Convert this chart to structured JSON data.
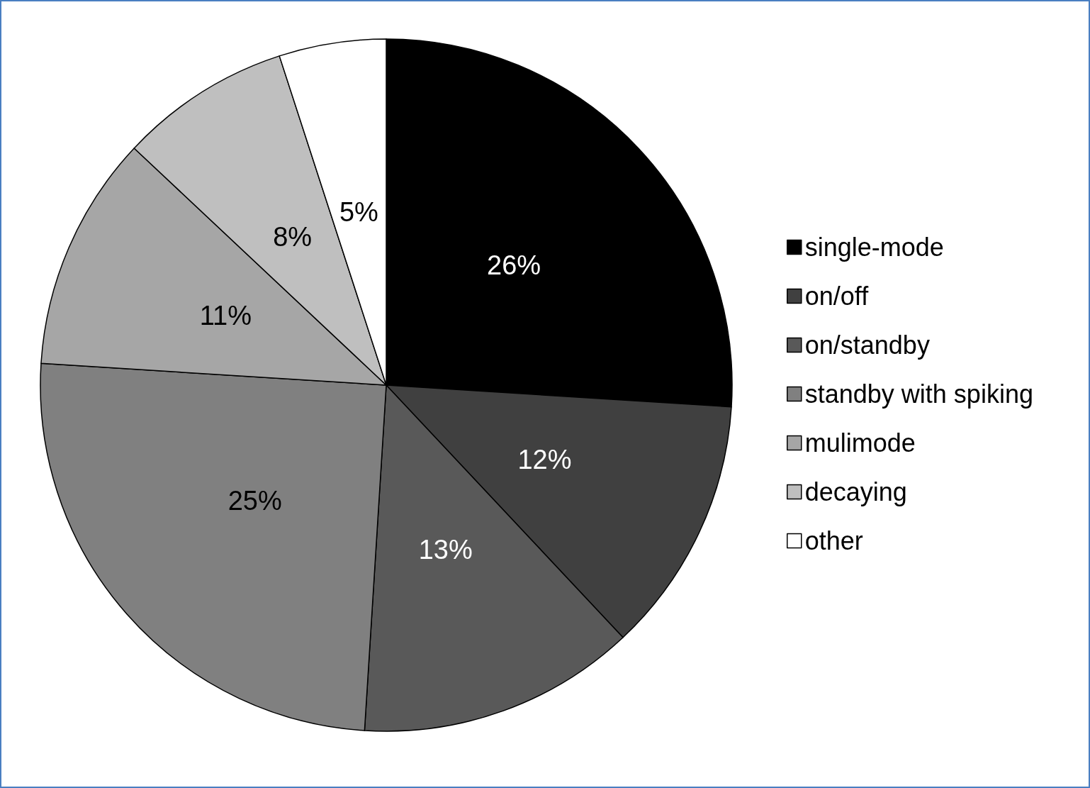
{
  "chart_data": {
    "type": "pie",
    "categories": [
      "single-mode",
      "on/off",
      "on/standby",
      "standby with spiking",
      "mulimode",
      "decaying",
      "other"
    ],
    "values": [
      26,
      12,
      13,
      25,
      11,
      8,
      5
    ],
    "colors": [
      "#000000",
      "#404040",
      "#595959",
      "#808080",
      "#a6a6a6",
      "#bfbfbf",
      "#ffffff"
    ],
    "value_labels": [
      "26%",
      "12%",
      "13%",
      "25%",
      "11%",
      "8%",
      "5%"
    ],
    "legend": "right"
  }
}
